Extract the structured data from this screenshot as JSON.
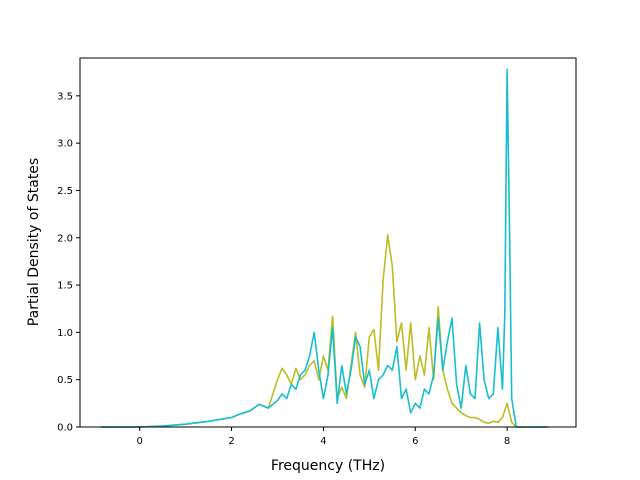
{
  "chart_data": {
    "type": "line",
    "title": "",
    "xlabel": "Frequency (THz)",
    "ylabel": "Partial Density of States",
    "xlim": [
      -1.3,
      9.5
    ],
    "ylim": [
      0.0,
      3.9
    ],
    "xticks": [
      0,
      2,
      4,
      6,
      8
    ],
    "yticks": [
      0.0,
      0.5,
      1.0,
      1.5,
      2.0,
      2.5,
      3.0,
      3.5
    ],
    "xtick_labels": [
      "0",
      "2",
      "4",
      "6",
      "8"
    ],
    "ytick_labels": [
      "0.0",
      "0.5",
      "1.0",
      "1.5",
      "2.0",
      "2.5",
      "3.0",
      "3.5"
    ],
    "grid": false,
    "series": [
      {
        "color": "#bcbd22",
        "x": [
          -0.85,
          0.0,
          0.5,
          1.0,
          1.5,
          2.0,
          2.2,
          2.4,
          2.6,
          2.8,
          3.0,
          3.1,
          3.2,
          3.3,
          3.4,
          3.5,
          3.6,
          3.7,
          3.8,
          3.9,
          4.0,
          4.1,
          4.2,
          4.3,
          4.4,
          4.5,
          4.6,
          4.7,
          4.8,
          4.9,
          5.0,
          5.1,
          5.2,
          5.3,
          5.4,
          5.5,
          5.6,
          5.7,
          5.8,
          5.9,
          6.0,
          6.1,
          6.2,
          6.3,
          6.4,
          6.5,
          6.6,
          6.7,
          6.8,
          6.9,
          7.0,
          7.1,
          7.2,
          7.3,
          7.4,
          7.5,
          7.6,
          7.7,
          7.8,
          7.9,
          8.0,
          8.1,
          8.2,
          8.4,
          8.9
        ],
        "y": [
          0.0,
          0.0,
          0.01,
          0.03,
          0.06,
          0.1,
          0.14,
          0.17,
          0.24,
          0.2,
          0.5,
          0.62,
          0.55,
          0.45,
          0.62,
          0.5,
          0.55,
          0.65,
          0.7,
          0.5,
          0.75,
          0.6,
          1.17,
          0.3,
          0.42,
          0.3,
          0.65,
          1.0,
          0.55,
          0.42,
          0.95,
          1.03,
          0.6,
          1.55,
          2.03,
          1.7,
          0.9,
          1.1,
          0.6,
          1.1,
          0.5,
          0.75,
          0.55,
          1.05,
          0.5,
          1.27,
          0.6,
          0.4,
          0.25,
          0.2,
          0.15,
          0.12,
          0.1,
          0.1,
          0.08,
          0.05,
          0.04,
          0.06,
          0.05,
          0.1,
          0.25,
          0.05,
          0.0,
          0.0,
          0.0
        ]
      },
      {
        "color": "#17becf",
        "x": [
          -0.85,
          0.0,
          0.5,
          1.0,
          1.5,
          2.0,
          2.2,
          2.4,
          2.6,
          2.8,
          3.0,
          3.1,
          3.2,
          3.3,
          3.4,
          3.5,
          3.6,
          3.7,
          3.8,
          3.9,
          4.0,
          4.1,
          4.2,
          4.3,
          4.4,
          4.5,
          4.6,
          4.7,
          4.8,
          4.9,
          5.0,
          5.1,
          5.2,
          5.3,
          5.4,
          5.5,
          5.6,
          5.7,
          5.8,
          5.9,
          6.0,
          6.1,
          6.2,
          6.3,
          6.4,
          6.5,
          6.6,
          6.7,
          6.8,
          6.9,
          7.0,
          7.1,
          7.2,
          7.3,
          7.4,
          7.5,
          7.6,
          7.7,
          7.8,
          7.9,
          7.95,
          8.0,
          8.05,
          8.1,
          8.2,
          8.4,
          8.9
        ],
        "y": [
          0.0,
          0.0,
          0.01,
          0.03,
          0.06,
          0.1,
          0.14,
          0.17,
          0.24,
          0.2,
          0.28,
          0.35,
          0.3,
          0.45,
          0.4,
          0.55,
          0.6,
          0.75,
          1.0,
          0.6,
          0.3,
          0.55,
          1.05,
          0.25,
          0.65,
          0.35,
          0.6,
          0.95,
          0.85,
          0.45,
          0.6,
          0.3,
          0.5,
          0.55,
          0.65,
          0.6,
          0.85,
          0.3,
          0.4,
          0.15,
          0.25,
          0.2,
          0.4,
          0.35,
          0.55,
          1.15,
          0.6,
          0.9,
          1.15,
          0.45,
          0.2,
          0.65,
          0.35,
          0.3,
          1.1,
          0.5,
          0.3,
          0.35,
          1.05,
          0.4,
          1.2,
          3.78,
          2.2,
          0.3,
          0.0,
          0.0,
          0.0
        ]
      }
    ]
  }
}
